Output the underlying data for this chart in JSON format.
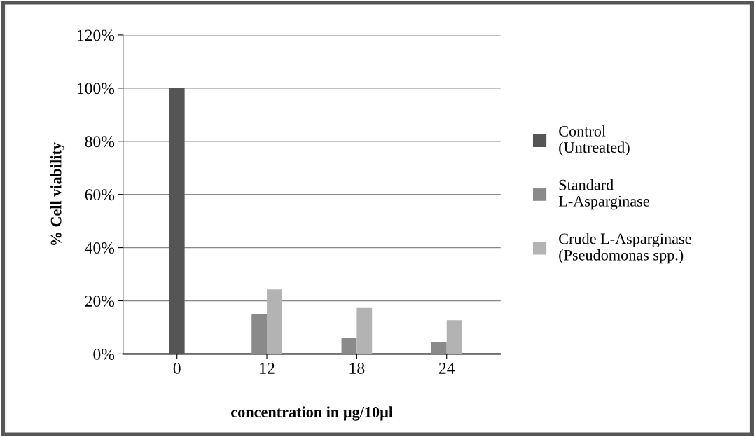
{
  "chart_data": {
    "type": "bar",
    "xlabel": "concentration in µg/10µl",
    "ylabel": "% Cell viability",
    "categories": [
      "0",
      "12",
      "18",
      "24"
    ],
    "series": [
      {
        "name": "Control\n(Untreated)",
        "color": "#555555",
        "values": [
          100,
          null,
          null,
          null
        ]
      },
      {
        "name": "Standard\nL-Asparginase",
        "color": "#8a8a8a",
        "values": [
          null,
          15,
          6.2,
          4.4
        ]
      },
      {
        "name": "Crude L-Asparginase\n(Pseudomonas spp.)",
        "color": "#b3b3b3",
        "values": [
          null,
          24.3,
          17.3,
          12.7
        ]
      }
    ],
    "ylim": [
      0,
      120
    ],
    "yticks": [
      {
        "value": 0,
        "label": "0%"
      },
      {
        "value": 20,
        "label": "20%"
      },
      {
        "value": 40,
        "label": "40%"
      },
      {
        "value": 60,
        "label": "60%"
      },
      {
        "value": 80,
        "label": "80%"
      },
      {
        "value": 100,
        "label": "100%"
      },
      {
        "value": 120,
        "label": "120%"
      }
    ],
    "grid": "y",
    "legend": "right"
  }
}
